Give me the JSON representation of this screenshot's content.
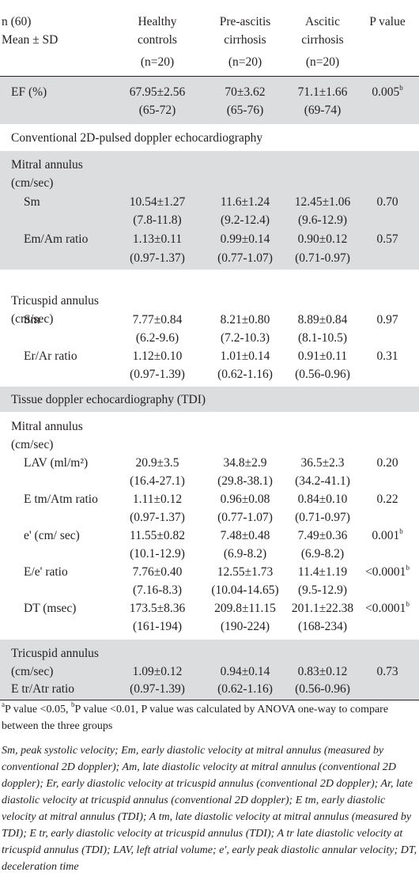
{
  "header": {
    "left": [
      "n (60)",
      "Mean ± SD"
    ],
    "columns": [
      {
        "l1": "Healthy",
        "l2": "controls",
        "n": "(n=20)"
      },
      {
        "l1": "Pre-ascitis",
        "l2": "cirrhosis",
        "n": "(n=20)"
      },
      {
        "l1": "Ascitic",
        "l2": "cirrhosis",
        "n": "(n=20)"
      },
      {
        "l1": "P value",
        "l2": "",
        "n": ""
      }
    ]
  },
  "ef": {
    "label": "EF (%)",
    "v": [
      "67.95±2.56",
      "70±3.62",
      "71.1±1.66"
    ],
    "r": [
      "(65-72)",
      "(65-76)",
      "(69-74)"
    ],
    "p": "0.005",
    "sup": "b"
  },
  "section1": "Conventional 2D-pulsed doppler echocardiography",
  "mitral1": {
    "title": [
      "Mitral annulus",
      "(cm/sec)"
    ],
    "rows": [
      {
        "label": "Sm",
        "v": [
          "10.54±1.27",
          "11.6±1.24",
          "12.45±1.06"
        ],
        "r": [
          "(7.8-11.8)",
          "(9.2-12.4)",
          "(9.6-12.9)"
        ],
        "p": "0.70",
        "sup": ""
      },
      {
        "label": "Em/Am ratio",
        "v": [
          "1.13±0.11",
          "0.99±0.14",
          "0.90±0.12"
        ],
        "r": [
          "(0.97-1.37)",
          "(0.77-1.07)",
          "(0.71-0.97)"
        ],
        "p": "0.57",
        "sup": ""
      }
    ]
  },
  "tricuspid1": {
    "title": [
      "Tricuspid annulus",
      "(cm/sec)"
    ],
    "rows": [
      {
        "label": "Sm",
        "v": [
          "7.77±0.84",
          "8.21±0.80",
          "8.89±0.84"
        ],
        "r": [
          "(6.2-9.6)",
          "(7.2-10.3)",
          "(8.1-10.5)"
        ],
        "p": "0.97",
        "sup": ""
      },
      {
        "label": "Er/Ar ratio",
        "v": [
          "1.12±0.10",
          "1.01±0.14",
          "0.91±0.11"
        ],
        "r": [
          "(0.97-1.39)",
          "(0.62-1.16)",
          "(0.56-0.96)"
        ],
        "p": "0.31",
        "sup": ""
      }
    ]
  },
  "section2": "Tissue doppler echocardiography (TDI)",
  "mitral2": {
    "title": [
      "Mitral annulus",
      "(cm/sec)"
    ],
    "rows": [
      {
        "label": "LAV (ml/m²)",
        "v": [
          "20.9±3.5",
          "34.8±2.9",
          "36.5±2.3"
        ],
        "r": [
          "(16.4-27.1)",
          "(29.8-38.1)",
          "(34.2-41.1)"
        ],
        "p": "0.20",
        "sup": ""
      },
      {
        "label": "E tm/Atm ratio",
        "v": [
          "1.11±0.12",
          "0.96±0.08",
          "0.84±0.10"
        ],
        "r": [
          "(0.97-1.37)",
          "(0.77-1.07)",
          "(0.71-0.97)"
        ],
        "p": "0.22",
        "sup": ""
      },
      {
        "label": "e' (cm/ sec)",
        "v": [
          "11.55±0.82",
          "7.48±0.48",
          "7.49±0.36"
        ],
        "r": [
          "(10.1-12.9)",
          "(6.9-8.2)",
          "(6.9-8.2)"
        ],
        "p": "0.001",
        "sup": "b"
      },
      {
        "label": "E/e' ratio",
        "v": [
          "7.76±0.40",
          "12.55±1.73",
          "11.4±1.19"
        ],
        "r": [
          "(7.16-8.3)",
          "(10.04-14.65)",
          "(9.5-12.9)"
        ],
        "p": "<0.0001",
        "sup": "b"
      },
      {
        "label": "DT (msec)",
        "v": [
          "173.5±8.36",
          "209.8±11.15",
          "201.1±22.38"
        ],
        "r": [
          "(161-194)",
          "(190-224)",
          "(168-234)"
        ],
        "p": "<0.0001",
        "sup": "b"
      }
    ]
  },
  "tricuspid2": {
    "title": [
      "Tricuspid annulus",
      "(cm/sec)",
      "E tr/Atr ratio"
    ],
    "v": [
      "1.09±0.12",
      "0.94±0.14",
      "0.83±0.12"
    ],
    "r": [
      "(0.97-1.39)",
      "(0.62-1.16)",
      "(0.56-0.96)"
    ],
    "p": "0.73"
  },
  "footnote": {
    "sup_a": "a",
    "text_a": "P value <0.05, ",
    "sup_b": "b",
    "text_b": "P value <0.01, P value was calculated by ANOVA one-way to compare between the three groups"
  },
  "abbreviations": "Sm, peak systolic velocity; Em, early diastolic velocity at mitral annulus (measured by conventional 2D doppler); Am, late diastolic velocity at mitral annulus (conventional 2D doppler); Er, early diastolic velocity at tricuspid annulus (conventional 2D doppler); Ar, late diastolic velocity at tricuspid annulus (conventional 2D doppler); E tm, early diastolic velocity at mitral annulus (TDI); A tm, late diastolic velocity at mitral annulus (measured by TDI); E tr, early diastolic velocity at tricuspid annulus (TDI); A tr late diastolic velocity at tricuspid annulus (TDI); LAV, left atrial volume; e', early peak diastolic annular velocity; DT, deceleration time"
}
